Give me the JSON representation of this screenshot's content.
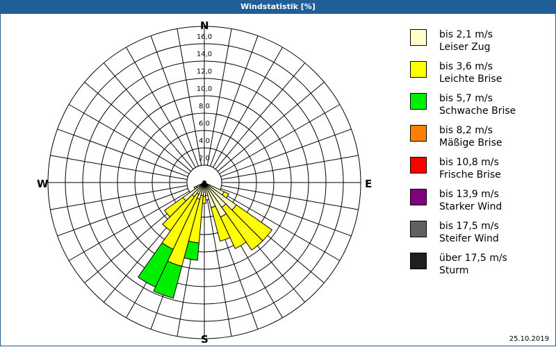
{
  "title": "Windstatistik [%]",
  "compass": {
    "n": "N",
    "e": "E",
    "s": "S",
    "w": "W"
  },
  "date": "25.10.2019",
  "legend": [
    {
      "line1": "bis 2,1 m/s",
      "line2": "Leiser Zug",
      "color": "#ffffcc"
    },
    {
      "line1": "bis 3,6 m/s",
      "line2": "Leichte Brise",
      "color": "#ffff00"
    },
    {
      "line1": "bis 5,7 m/s",
      "line2": "Schwache Brise",
      "color": "#00ee00"
    },
    {
      "line1": "bis 8,2 m/s",
      "line2": "Mäßige Brise",
      "color": "#ff8000"
    },
    {
      "line1": "bis 10,8 m/s",
      "line2": "Frische Brise",
      "color": "#ff0000"
    },
    {
      "line1": "bis 13,9 m/s",
      "line2": "Starker Wind",
      "color": "#800080"
    },
    {
      "line1": "bis 17,5 m/s",
      "line2": "Steifer Wind",
      "color": "#606060"
    },
    {
      "line1": "über 17,5 m/s",
      "line2": "Sturm",
      "color": "#202020"
    }
  ],
  "chart_data": {
    "type": "polar-stacked-bar (wind rose)",
    "title": "Windstatistik [%]",
    "radial_axis": {
      "min": 0,
      "max": 16,
      "ticks": [
        "2,0",
        "4,0",
        "6,0",
        "8,0",
        "10,0",
        "12,0",
        "14,0",
        "16,0"
      ],
      "unit": "%"
    },
    "directions_deg_step": 10,
    "series_names": [
      "bis 2,1 m/s",
      "bis 3,6 m/s",
      "bis 5,7 m/s",
      "bis 8,2 m/s",
      "bis 10,8 m/s",
      "bis 13,9 m/s",
      "bis 17,5 m/s",
      "über 17,5 m/s"
    ],
    "sectors": [
      {
        "dir": 120,
        "values": [
          2.5,
          0.6,
          0,
          0,
          0,
          0,
          0,
          0
        ]
      },
      {
        "dir": 130,
        "values": [
          4.5,
          5.0,
          0,
          0,
          0,
          0,
          0,
          0
        ]
      },
      {
        "dir": 140,
        "values": [
          3.5,
          6.0,
          0,
          0,
          0,
          0,
          0,
          0
        ]
      },
      {
        "dir": 150,
        "values": [
          4.4,
          4.0,
          0,
          0,
          0,
          0,
          0,
          0
        ]
      },
      {
        "dir": 160,
        "values": [
          3.0,
          4.0,
          0,
          0,
          0,
          0,
          0,
          0
        ]
      },
      {
        "dir": 170,
        "values": [
          1.5,
          0,
          0,
          0,
          0,
          0,
          0,
          0
        ]
      },
      {
        "dir": 180,
        "values": [
          1.6,
          0.8,
          0,
          0,
          0,
          0,
          0,
          0
        ]
      },
      {
        "dir": 190,
        "values": [
          1.5,
          5.5,
          2.0,
          0,
          0,
          0,
          0,
          0
        ]
      },
      {
        "dir": 200,
        "values": [
          2.0,
          8.0,
          3.8,
          0,
          0,
          0,
          0,
          0
        ]
      },
      {
        "dir": 210,
        "values": [
          1.5,
          7.0,
          4.8,
          0,
          0,
          0,
          0,
          0
        ]
      },
      {
        "dir": 220,
        "values": [
          2.0,
          4.8,
          0,
          0,
          0,
          0,
          0,
          0
        ]
      },
      {
        "dir": 230,
        "values": [
          3.0,
          2.6,
          0,
          0,
          0,
          0,
          0,
          0
        ]
      },
      {
        "dir": 240,
        "values": [
          1.0,
          0.3,
          0,
          0,
          0,
          0,
          0,
          0
        ]
      }
    ],
    "legend_position": "right",
    "grid": true
  }
}
